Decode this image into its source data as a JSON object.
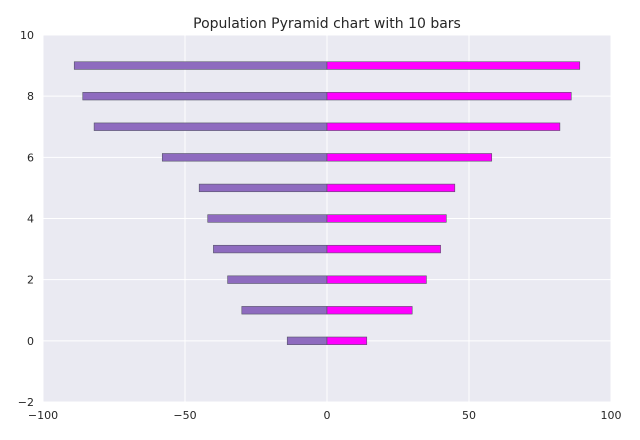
{
  "chart_data": {
    "type": "bar",
    "orientation": "horizontal",
    "title": "Population Pyramid chart with 10 bars",
    "xlabel": "",
    "ylabel": "",
    "xlim": [
      -100,
      100
    ],
    "ylim": [
      -2,
      10
    ],
    "x_ticks": [
      -100,
      -50,
      0,
      50,
      100
    ],
    "x_tick_labels": [
      "−100",
      "−50",
      "0",
      "50",
      "100"
    ],
    "y_ticks": [
      -2,
      0,
      2,
      4,
      6,
      8,
      10
    ],
    "y_tick_labels": [
      "−2",
      "0",
      "2",
      "4",
      "6",
      "8",
      "10"
    ],
    "grid": true,
    "categories": [
      0,
      1,
      2,
      3,
      4,
      5,
      6,
      7,
      8,
      9
    ],
    "series": [
      {
        "color": "#8e6bbf",
        "values": [
          -14,
          -30,
          -35,
          -40,
          -42,
          -45,
          -58,
          -82,
          -86,
          -89
        ]
      },
      {
        "color": "#ff00ff",
        "values": [
          14,
          30,
          35,
          40,
          42,
          45,
          58,
          82,
          86,
          89
        ]
      }
    ],
    "background_color": "#eaeaf2",
    "grid_color": "#ffffff"
  }
}
